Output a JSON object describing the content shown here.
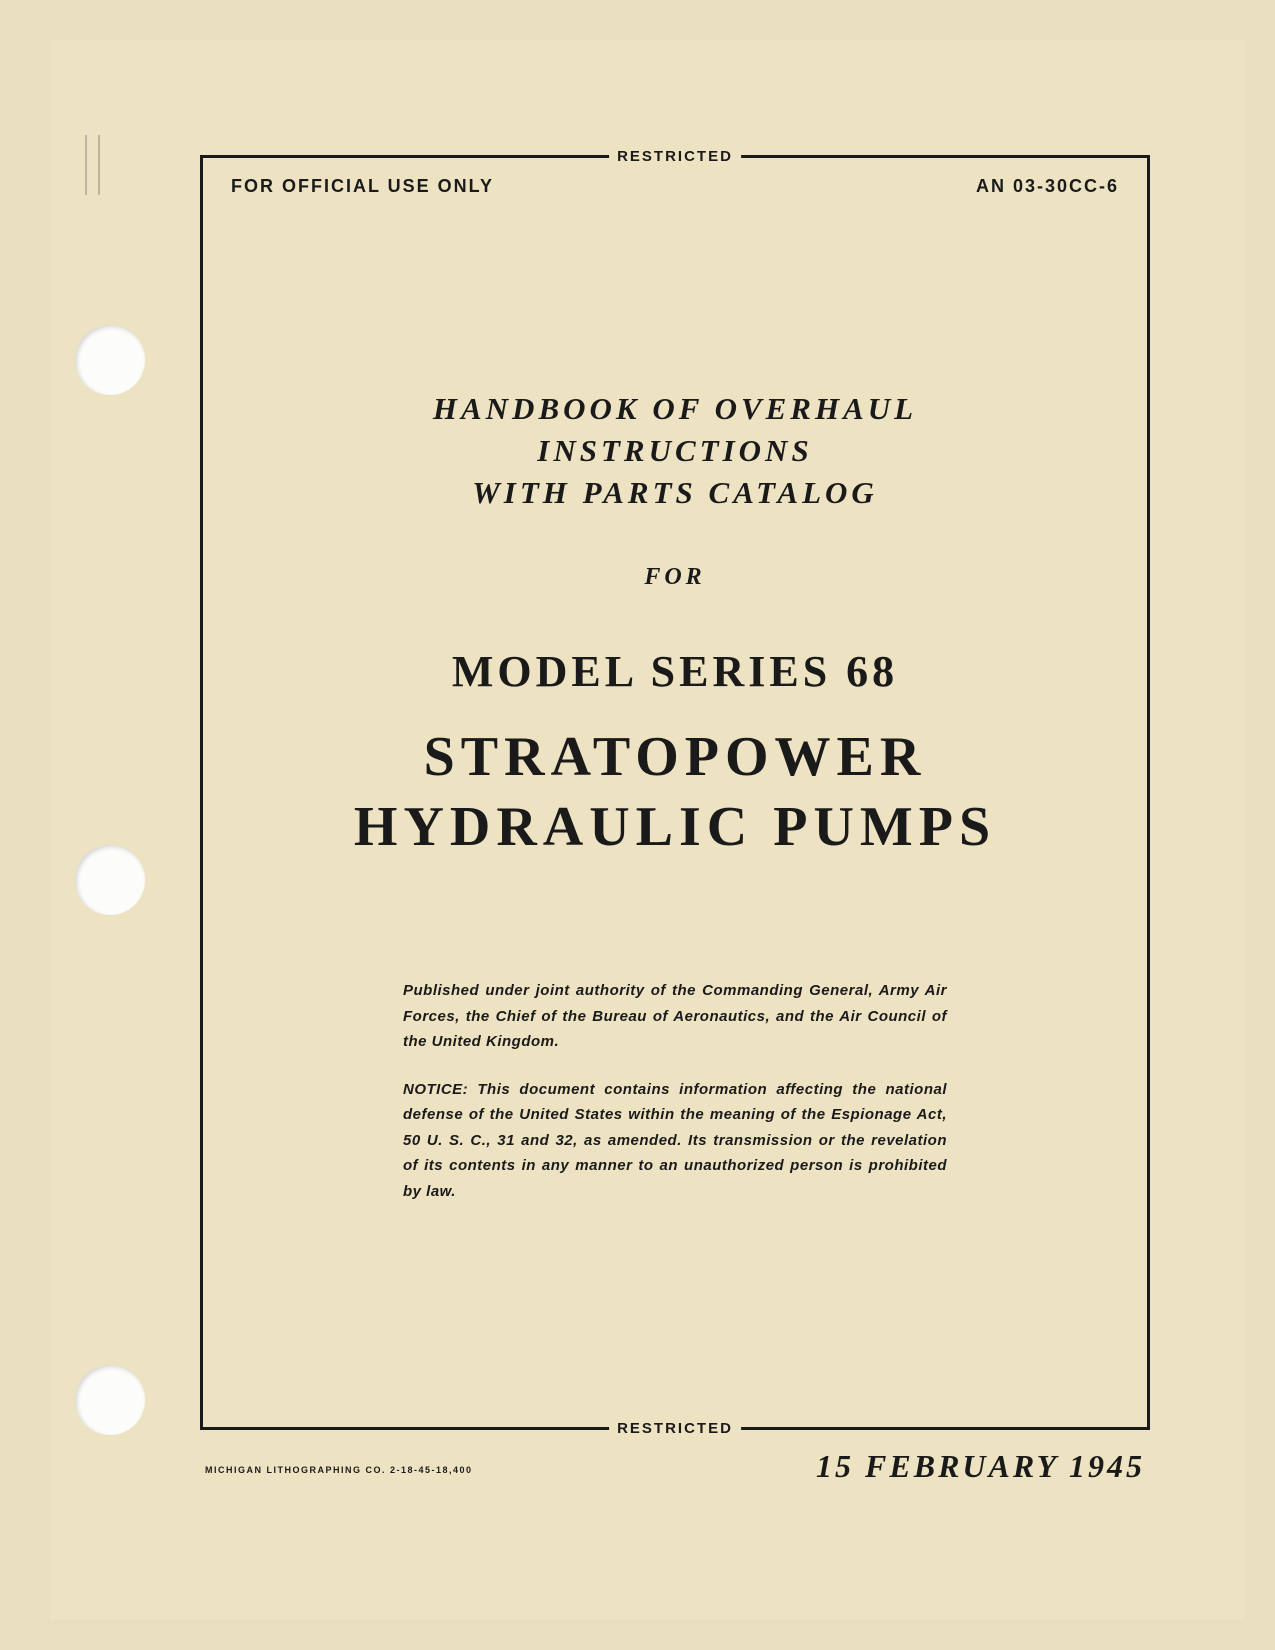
{
  "classification": "RESTRICTED",
  "header": {
    "left": "FOR OFFICIAL USE ONLY",
    "right": "AN 03-30CC-6"
  },
  "subtitle": {
    "line1": "HANDBOOK OF OVERHAUL",
    "line2": "INSTRUCTIONS",
    "line3": "WITH PARTS CATALOG"
  },
  "for": "FOR",
  "model": "MODEL SERIES 68",
  "title": {
    "line1": "STRATOPOWER",
    "line2": "HYDRAULIC PUMPS"
  },
  "authority": "Published under joint authority of the Commanding General, Army Air Forces, the Chief of the Bureau of Aeronautics, and the Air Council of the United Kingdom.",
  "notice": "NOTICE: This document contains information affecting the national defense of the United States within the meaning of the Espionage Act, 50 U. S. C., 31 and 32, as amended. Its transmission or the revelation of its contents in any manner to an unauthorized person is prohibited by law.",
  "date": "15 FEBRUARY 1945",
  "printer": "MICHIGAN LITHOGRAPHING CO. 2-18-45-18,400"
}
